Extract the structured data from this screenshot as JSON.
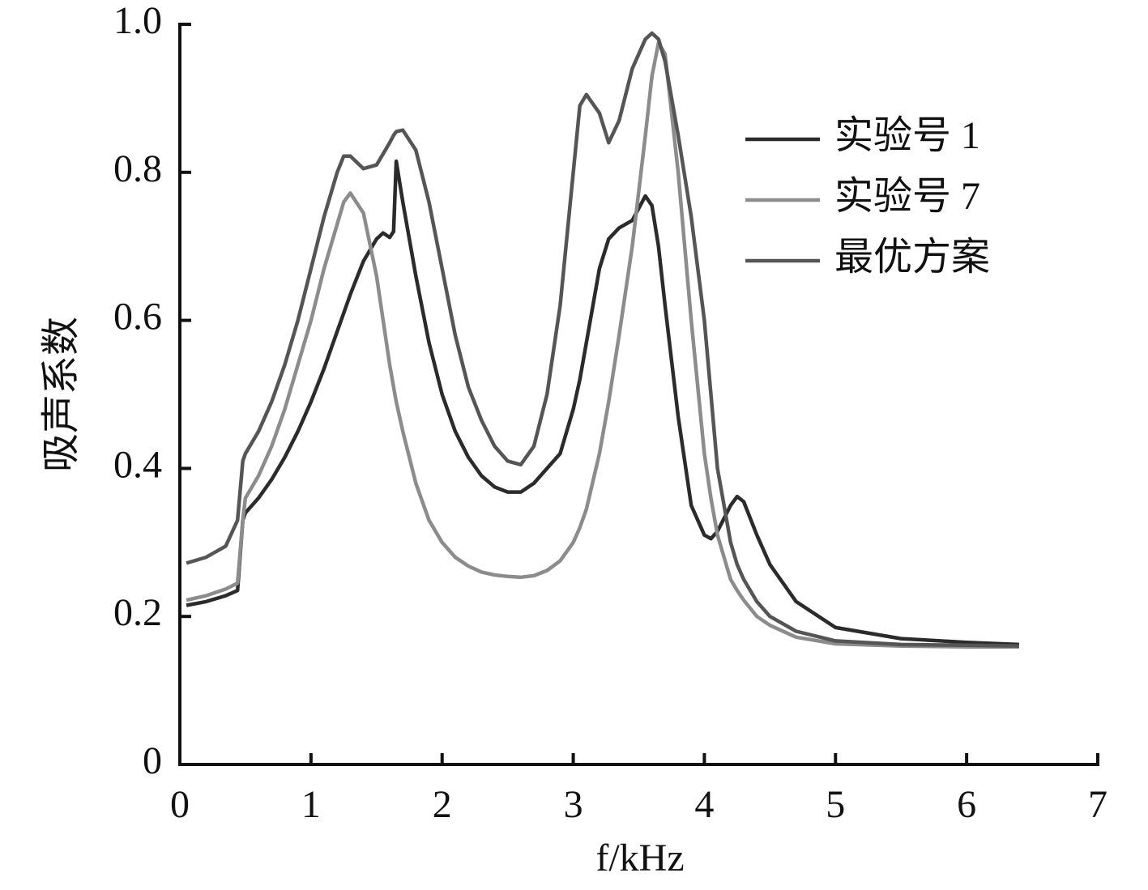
{
  "chart_data": {
    "type": "line",
    "xlabel": "f/kHz",
    "ylabel": "吸声系数",
    "xlim": [
      0,
      7
    ],
    "ylim": [
      0,
      1
    ],
    "xticks": [
      0,
      1,
      2,
      3,
      4,
      5,
      6,
      7
    ],
    "yticks": [
      0,
      0.2,
      0.4,
      0.6,
      0.8,
      {
        "value": 1,
        "label": "1.0"
      }
    ],
    "legend": "upper-right",
    "x": [
      0.05,
      0.2,
      0.35,
      0.44,
      0.48,
      0.5,
      0.6,
      0.7,
      0.8,
      0.9,
      1.0,
      1.1,
      1.2,
      1.25,
      1.3,
      1.4,
      1.5,
      1.55,
      1.6,
      1.63,
      1.65,
      1.7,
      1.8,
      1.9,
      2.0,
      2.1,
      2.2,
      2.3,
      2.4,
      2.5,
      2.6,
      2.7,
      2.8,
      2.9,
      3.0,
      3.05,
      3.1,
      3.2,
      3.27,
      3.35,
      3.45,
      3.55,
      3.6,
      3.65,
      3.7,
      3.8,
      3.9,
      4.0,
      4.05,
      4.1,
      4.2,
      4.25,
      4.3,
      4.4,
      4.5,
      4.7,
      5.0,
      5.5,
      6.0,
      6.4
    ],
    "series": [
      {
        "name": "实验号 1",
        "color": "#2b2b2b",
        "values": [
          0.215,
          0.22,
          0.228,
          0.235,
          0.33,
          0.34,
          0.36,
          0.385,
          0.415,
          0.45,
          0.49,
          0.535,
          0.585,
          0.61,
          0.635,
          0.68,
          0.71,
          0.718,
          0.712,
          0.72,
          0.815,
          0.76,
          0.66,
          0.57,
          0.5,
          0.45,
          0.415,
          0.39,
          0.375,
          0.368,
          0.368,
          0.38,
          0.4,
          0.42,
          0.48,
          0.52,
          0.57,
          0.67,
          0.71,
          0.725,
          0.735,
          0.768,
          0.755,
          0.7,
          0.62,
          0.47,
          0.35,
          0.31,
          0.305,
          0.315,
          0.35,
          0.362,
          0.355,
          0.31,
          0.27,
          0.22,
          0.185,
          0.17,
          0.165,
          0.162
        ]
      },
      {
        "name": "实验号 7",
        "color": "#8c8c8c",
        "values": [
          0.222,
          0.228,
          0.237,
          0.245,
          0.33,
          0.36,
          0.39,
          0.43,
          0.48,
          0.54,
          0.6,
          0.67,
          0.73,
          0.76,
          0.772,
          0.745,
          0.66,
          0.6,
          0.54,
          0.51,
          0.49,
          0.45,
          0.38,
          0.33,
          0.3,
          0.28,
          0.268,
          0.26,
          0.256,
          0.254,
          0.253,
          0.255,
          0.262,
          0.275,
          0.3,
          0.32,
          0.345,
          0.42,
          0.49,
          0.58,
          0.7,
          0.85,
          0.93,
          0.975,
          0.96,
          0.8,
          0.6,
          0.42,
          0.36,
          0.31,
          0.25,
          0.235,
          0.222,
          0.2,
          0.188,
          0.172,
          0.163,
          0.16,
          0.159,
          0.159
        ]
      },
      {
        "name": "最优方案",
        "color": "#555555",
        "values": [
          0.272,
          0.28,
          0.295,
          0.33,
          0.41,
          0.42,
          0.45,
          0.49,
          0.54,
          0.6,
          0.67,
          0.74,
          0.8,
          0.822,
          0.822,
          0.805,
          0.81,
          0.825,
          0.84,
          0.85,
          0.855,
          0.857,
          0.83,
          0.76,
          0.67,
          0.58,
          0.51,
          0.465,
          0.43,
          0.41,
          0.405,
          0.43,
          0.5,
          0.62,
          0.8,
          0.89,
          0.905,
          0.88,
          0.84,
          0.87,
          0.94,
          0.98,
          0.988,
          0.98,
          0.95,
          0.85,
          0.74,
          0.6,
          0.5,
          0.4,
          0.3,
          0.27,
          0.25,
          0.22,
          0.2,
          0.18,
          0.167,
          0.162,
          0.161,
          0.16
        ]
      }
    ]
  }
}
